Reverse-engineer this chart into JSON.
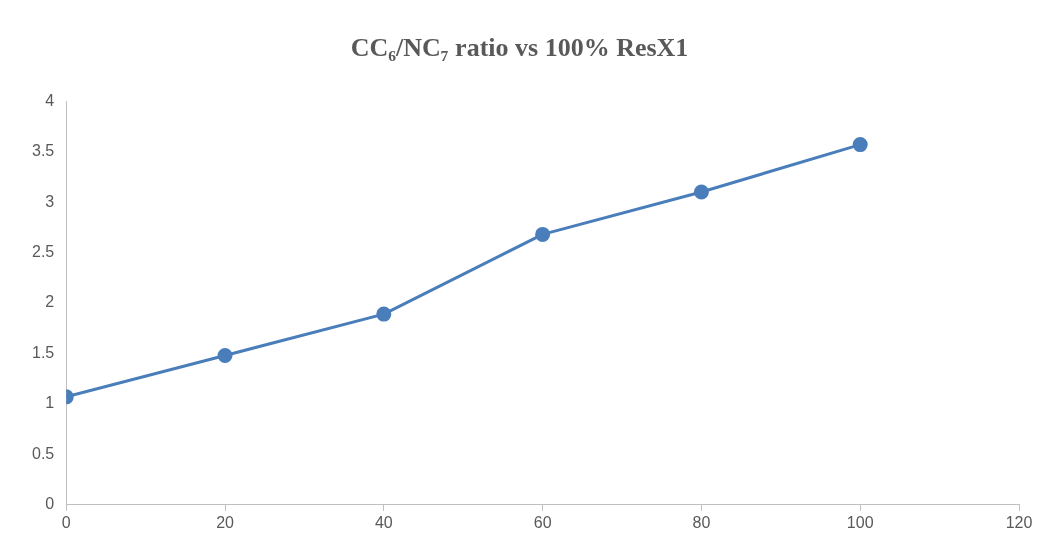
{
  "chart_data": {
    "type": "line",
    "title": "CC₆/NC₇ ratio vs 100% ResX1",
    "x": [
      0,
      20,
      40,
      60,
      80,
      100
    ],
    "series": [
      {
        "color": "#4a7ebb",
        "values": [
          1.07,
          1.48,
          1.89,
          2.68,
          3.1,
          3.57
        ]
      }
    ],
    "xlim": [
      0,
      120
    ],
    "xticks": [
      0,
      20,
      40,
      60,
      80,
      100,
      120
    ],
    "ylim": [
      0,
      4
    ],
    "yticks": [
      0,
      0.5,
      1,
      1.5,
      2,
      2.5,
      3,
      3.5,
      4
    ],
    "grid": false,
    "legend": false,
    "marker": "circle",
    "line_style": "solid"
  }
}
